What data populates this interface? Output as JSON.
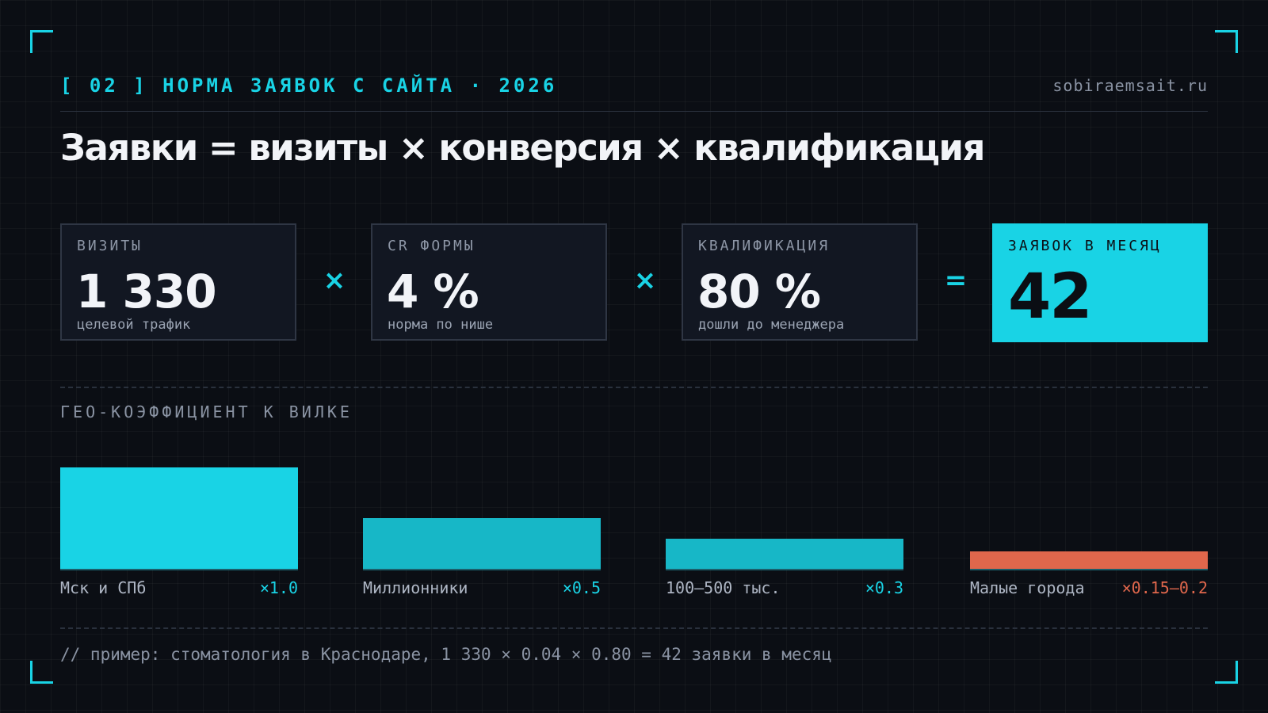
{
  "header": {
    "tag": "[ 02 ] НОРМА ЗАЯВОК С САЙТА · 2026",
    "site": "sobiraemsait.ru"
  },
  "headline": "Заявки = визиты × конверсия × квалификация",
  "cards": [
    {
      "label": "ВИЗИТЫ",
      "value": "1 330",
      "note": "целевой трафик"
    },
    {
      "label": "CR ФОРМЫ",
      "value": "4 %",
      "note": "норма по нише"
    },
    {
      "label": "КВАЛИФИКАЦИЯ",
      "value": "80 %",
      "note": "дошли до менеджера"
    }
  ],
  "operators": {
    "multiply": "×",
    "equals": "="
  },
  "result": {
    "label": "ЗАЯВОК В МЕСЯЦ",
    "value": "42"
  },
  "geo": {
    "title": "ГЕО-КОЭФФИЦИЕНТ К ВИЛКЕ",
    "accent_color": "#19d3e5",
    "secondary_color": "#17b7c7",
    "warning_color": "#e0674c"
  },
  "chart_data": {
    "type": "bar",
    "categories": [
      "Мск и СПб",
      "Миллионники",
      "100–500 тыс.",
      "Малые города"
    ],
    "labels": [
      "×1.0",
      "×0.5",
      "×0.3",
      "×0.15–0.2"
    ],
    "values": [
      1.0,
      0.5,
      0.3,
      0.175
    ],
    "colors": [
      "#19d3e5",
      "#17b7c7",
      "#17b7c7",
      "#e0674c"
    ],
    "ylim": [
      0,
      1.0
    ]
  },
  "footer": {
    "note": "// пример: стоматология в Краснодаре, 1 330 × 0.04 × 0.80 = 42 заявки в месяц"
  }
}
